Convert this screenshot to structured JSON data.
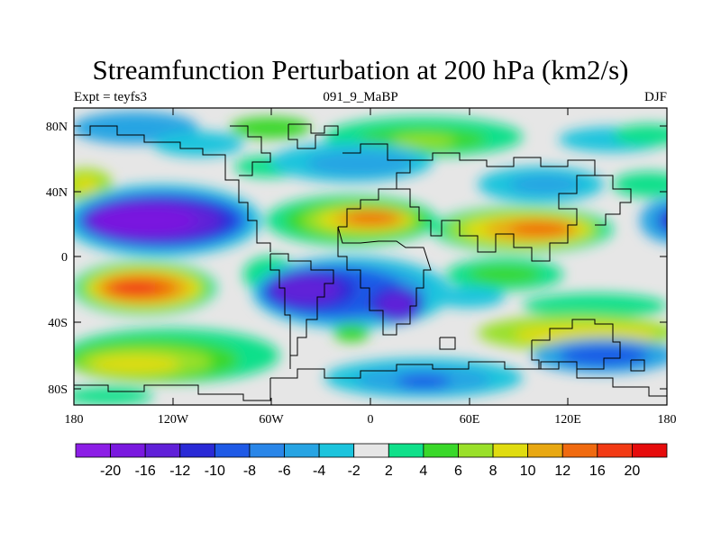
{
  "title": "Streamfunction Perturbation at 200 hPa (km2/s)",
  "subtitle_left": "Expt = teyfs3",
  "subtitle_center": "091_9_MaBP",
  "subtitle_right": "DJF",
  "lat_ticks": [
    "80N",
    "40N",
    "0",
    "40S",
    "80S"
  ],
  "lon_ticks": [
    "180",
    "120W",
    "60W",
    "0",
    "60E",
    "120E",
    "180"
  ],
  "colorbar": {
    "labels": [
      "-20",
      "-16",
      "-12",
      "-10",
      "-8",
      "-6",
      "-4",
      "-2",
      "2",
      "4",
      "6",
      "8",
      "10",
      "12",
      "16",
      "20"
    ],
    "colors": [
      "#8c1ee6",
      "#7a19df",
      "#6020d8",
      "#2a2ad6",
      "#1f5ae6",
      "#2a86e8",
      "#27a4e3",
      "#1cc4dd",
      "#e6e6e6",
      "#10e08a",
      "#3ad82a",
      "#9ae02a",
      "#e0dc10",
      "#e8a812",
      "#f06a10",
      "#f23a14",
      "#e60c0c"
    ]
  },
  "map_data": {
    "type": "contour-fill",
    "projection": "cylindrical-equidistant",
    "lon_range": [
      -180,
      180
    ],
    "lat_range": [
      -90,
      90
    ],
    "variable": "streamfunction perturbation",
    "level_hPa": 200,
    "units": "km2/s",
    "season": "DJF"
  }
}
